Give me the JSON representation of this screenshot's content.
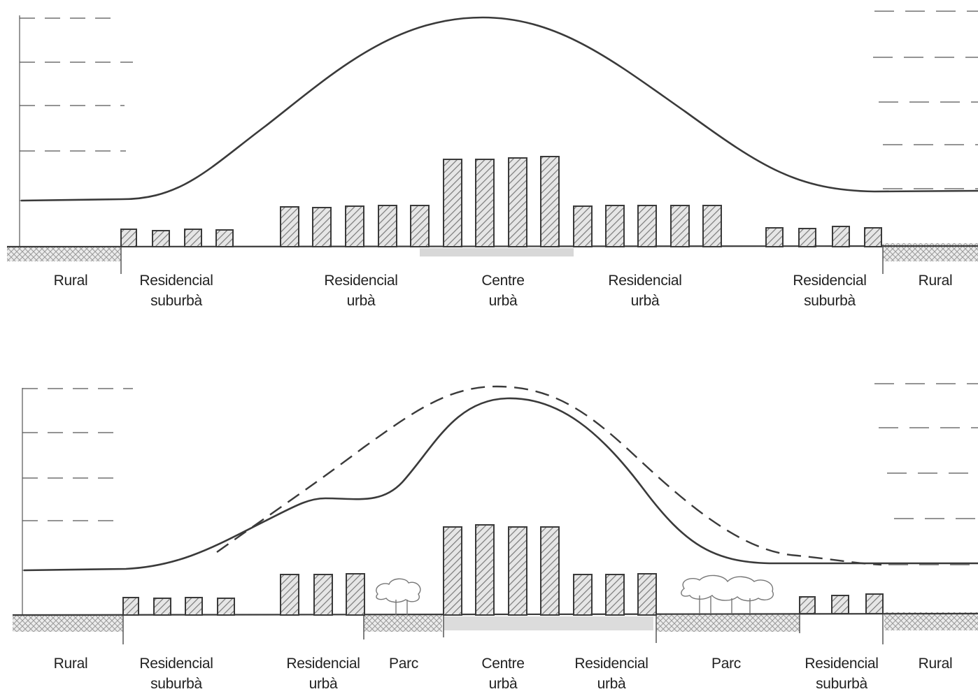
{
  "top_diagram": {
    "zones": [
      {
        "line1": "Rural",
        "line2": ""
      },
      {
        "line1": "Residencial",
        "line2": "suburbà"
      },
      {
        "line1": "Residencial",
        "line2": "urbà"
      },
      {
        "line1": "Centre",
        "line2": "urbà"
      },
      {
        "line1": "Residencial",
        "line2": "urbà"
      },
      {
        "line1": "Residencial",
        "line2": "suburbà"
      },
      {
        "line1": "Rural",
        "line2": ""
      }
    ]
  },
  "bottom_diagram": {
    "zones": [
      {
        "line1": "Rural",
        "line2": ""
      },
      {
        "line1": "Residencial",
        "line2": "suburbà"
      },
      {
        "line1": "Residencial",
        "line2": "urbà"
      },
      {
        "line1": "Parc",
        "line2": ""
      },
      {
        "line1": "Centre",
        "line2": "urbà"
      },
      {
        "line1": "Residencial",
        "line2": "urbà"
      },
      {
        "line1": "Parc",
        "line2": ""
      },
      {
        "line1": "Residencial",
        "line2": "suburbà"
      },
      {
        "line1": "Rural",
        "line2": ""
      }
    ]
  },
  "colors": {
    "ink": "#3a3a3a",
    "pencil": "#555555",
    "hatch": "#9a9a9a",
    "paper": "#ffffff"
  }
}
